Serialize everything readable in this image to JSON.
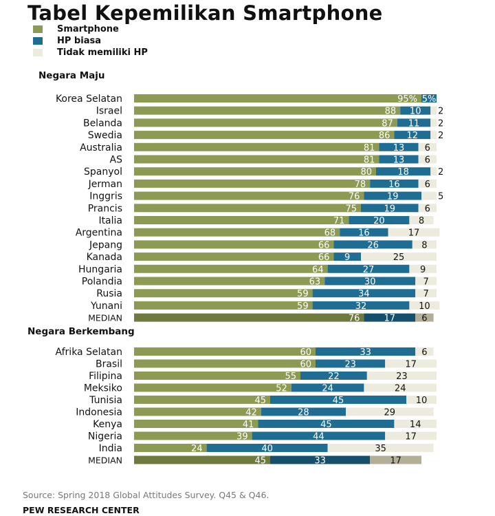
{
  "title": "Tabel Kepemilikan Smartphone",
  "legend": [
    {
      "label": "Smartphone",
      "color": "#8c9a53"
    },
    {
      "label": "HP biasa",
      "color": "#1f6d93"
    },
    {
      "label": "Tidak memiliki HP",
      "color": "#ecebdd"
    }
  ],
  "source": "Source: Spring 2018 Global Attitudes Survey. Q45 & Q46.",
  "credit": "PEW RESEARCH CENTER",
  "chart_data": {
    "type": "bar",
    "orientation": "horizontal",
    "stacked": true,
    "xlim": [
      0,
      100
    ],
    "series_names": [
      "Smartphone",
      "HP biasa",
      "Tidak memiliki HP"
    ],
    "groups": [
      {
        "name": "Negara Maju",
        "rows": [
          {
            "label": "Korea Selatan",
            "values": [
              95,
              5,
              0
            ],
            "labels": [
              "95%",
              "5%",
              ""
            ]
          },
          {
            "label": "Israel",
            "values": [
              88,
              10,
              2
            ],
            "labels": [
              "88",
              "10",
              "2"
            ]
          },
          {
            "label": "Belanda",
            "values": [
              87,
              11,
              2
            ],
            "labels": [
              "87",
              "11",
              "2"
            ]
          },
          {
            "label": "Swedia",
            "values": [
              86,
              12,
              2
            ],
            "labels": [
              "86",
              "12",
              "2"
            ]
          },
          {
            "label": "Australia",
            "values": [
              81,
              13,
              6
            ],
            "labels": [
              "81",
              "13",
              "6"
            ]
          },
          {
            "label": "AS",
            "values": [
              81,
              13,
              6
            ],
            "labels": [
              "81",
              "13",
              "6"
            ]
          },
          {
            "label": "Spanyol",
            "values": [
              80,
              18,
              2
            ],
            "labels": [
              "80",
              "18",
              "2"
            ]
          },
          {
            "label": "Jerman",
            "values": [
              78,
              16,
              6
            ],
            "labels": [
              "78",
              "16",
              "6"
            ]
          },
          {
            "label": "Inggris",
            "values": [
              76,
              19,
              5
            ],
            "labels": [
              "76",
              "19",
              "5"
            ]
          },
          {
            "label": "Prancis",
            "values": [
              75,
              19,
              6
            ],
            "labels": [
              "75",
              "19",
              "6"
            ]
          },
          {
            "label": "Italia",
            "values": [
              71,
              20,
              8
            ],
            "labels": [
              "71",
              "20",
              "8"
            ]
          },
          {
            "label": "Argentina",
            "values": [
              68,
              16,
              17
            ],
            "labels": [
              "68",
              "16",
              "17"
            ]
          },
          {
            "label": "Jepang",
            "values": [
              66,
              26,
              8
            ],
            "labels": [
              "66",
              "26",
              "8"
            ]
          },
          {
            "label": "Kanada",
            "values": [
              66,
              9,
              25
            ],
            "labels": [
              "66",
              "9",
              "25"
            ]
          },
          {
            "label": "Hungaria",
            "values": [
              64,
              27,
              9
            ],
            "labels": [
              "64",
              "27",
              "9"
            ]
          },
          {
            "label": "Polandia",
            "values": [
              63,
              30,
              7
            ],
            "labels": [
              "63",
              "30",
              "7"
            ]
          },
          {
            "label": "Rusia",
            "values": [
              59,
              34,
              7
            ],
            "labels": [
              "59",
              "34",
              "7"
            ]
          },
          {
            "label": "Yunani",
            "values": [
              59,
              32,
              10
            ],
            "labels": [
              "59",
              "32",
              "10"
            ]
          },
          {
            "label": "MEDIAN",
            "values": [
              76,
              17,
              6
            ],
            "labels": [
              "76",
              "17",
              "6"
            ],
            "median": true
          }
        ]
      },
      {
        "name": "Negara Berkembang",
        "rows": [
          {
            "label": "Afrika Selatan",
            "values": [
              60,
              33,
              6
            ],
            "labels": [
              "60",
              "33",
              "6"
            ]
          },
          {
            "label": "Brasil",
            "values": [
              60,
              23,
              17
            ],
            "labels": [
              "60",
              "23",
              "17"
            ]
          },
          {
            "label": "Filipina",
            "values": [
              55,
              22,
              23
            ],
            "labels": [
              "55",
              "22",
              "23"
            ]
          },
          {
            "label": "Meksiko",
            "values": [
              52,
              24,
              24
            ],
            "labels": [
              "52",
              "24",
              "24"
            ]
          },
          {
            "label": "Tunisia",
            "values": [
              45,
              45,
              10
            ],
            "labels": [
              "45",
              "45",
              "10"
            ]
          },
          {
            "label": "Indonesia",
            "values": [
              42,
              28,
              29
            ],
            "labels": [
              "42",
              "28",
              "29"
            ]
          },
          {
            "label": "Kenya",
            "values": [
              41,
              45,
              14
            ],
            "labels": [
              "41",
              "45",
              "14"
            ]
          },
          {
            "label": "Nigeria",
            "values": [
              39,
              44,
              17
            ],
            "labels": [
              "39",
              "44",
              "17"
            ]
          },
          {
            "label": "India",
            "values": [
              24,
              40,
              35
            ],
            "labels": [
              "24",
              "40",
              "35"
            ]
          },
          {
            "label": "MEDIAN",
            "values": [
              45,
              33,
              17
            ],
            "labels": [
              "45",
              "33",
              "17"
            ],
            "median": true
          }
        ]
      }
    ]
  }
}
